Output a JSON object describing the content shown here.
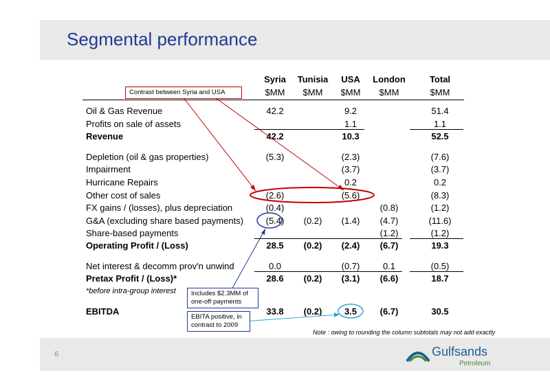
{
  "title": "Segmental performance",
  "page_number": "6",
  "columns": [
    {
      "name": "Syria",
      "unit": "$MM"
    },
    {
      "name": "Tunisia",
      "unit": "$MM"
    },
    {
      "name": "USA",
      "unit": "$MM"
    },
    {
      "name": "London",
      "unit": "$MM"
    },
    {
      "name": "Total",
      "unit": "$MM"
    }
  ],
  "rows": {
    "oil_gas": {
      "label": "Oil & Gas Revenue",
      "syria": "42.2",
      "usa": "9.2",
      "total": "51.4"
    },
    "profits_sale": {
      "label": "Profits on sale of assets",
      "usa": "1.1",
      "total": "1.1"
    },
    "revenue": {
      "label": "Revenue",
      "syria": "42.2",
      "usa": "10.3",
      "total": "52.5"
    },
    "depletion": {
      "label": "Depletion (oil & gas properties)",
      "syria": "(5.3)",
      "usa": "(2.3)",
      "total": "(7.6)"
    },
    "impairment": {
      "label": "Impairment",
      "usa": "(3.7)",
      "total": "(3.7)"
    },
    "hurricane": {
      "label": "Hurricane Repairs",
      "usa": "0.2",
      "total": "0.2"
    },
    "other_cost": {
      "label": "Other cost of sales",
      "syria": "(2.6)",
      "usa": "(5.6)",
      "total": "(8.3)"
    },
    "fx": {
      "label": "FX gains / (losses), plus depreciation",
      "syria": "(0.4)",
      "london": "(0.8)",
      "total": "(1.2)"
    },
    "ga": {
      "label": "G&A (excluding share based payments)",
      "syria": "(5.4)",
      "tunisia": "(0.2)",
      "usa": "(1.4)",
      "london": "(4.7)",
      "total": "(11.6)"
    },
    "sbp": {
      "label": "Share-based payments",
      "london": "(1.2)",
      "total": "(1.2)"
    },
    "op_profit": {
      "label": "Operating Profit / (Loss)",
      "syria": "28.5",
      "tunisia": "(0.2)",
      "usa": "(2.4)",
      "london": "(6.7)",
      "total": "19.3"
    },
    "net_interest": {
      "label": "Net interest & decomm prov'n unwind",
      "syria": "0.0",
      "usa": "(0.7)",
      "london": "0.1",
      "total": "(0.5)"
    },
    "pretax": {
      "label": "Pretax Profit / (Loss)*",
      "syria": "28.6",
      "tunisia": "(0.2)",
      "usa": "(3.1)",
      "london": "(6.6)",
      "total": "18.7"
    },
    "ebitda": {
      "label": "EBITDA",
      "syria": "33.8",
      "tunisia": "(0.2)",
      "usa": "3.5",
      "london": "(6.7)",
      "total": "30.5"
    }
  },
  "note_italic": "*before intra-group interest",
  "footnote": "Note : owing to rounding the column subtotals may not add exactly",
  "callouts": {
    "contrast": "Contrast between Syria and USA",
    "includes": "Includes $2.3MM of one-off payments",
    "ebita": "EBITA positive, in contrast to 2009"
  },
  "logo": {
    "word": "Gulfsands",
    "sub": "Petroleum"
  },
  "colors": {
    "title": "#1f3a93",
    "highlight_red": "#c00000",
    "highlight_blue": "#1f3a93",
    "highlight_cyan": "#2aa7d8",
    "band": "#e9e9e9"
  }
}
